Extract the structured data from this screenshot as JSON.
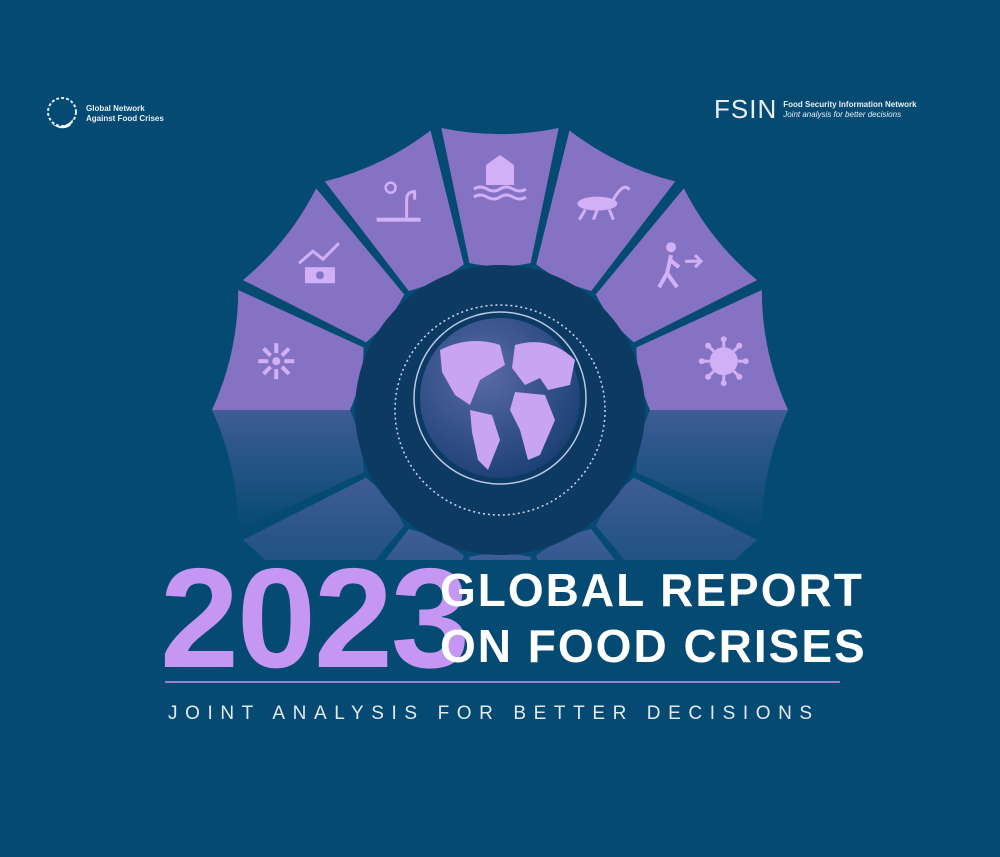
{
  "logos": {
    "left": {
      "line1": "Global Network",
      "line2": "Against Food Crises"
    },
    "right": {
      "mark": "FSIN",
      "line1": "Food Security Information Network",
      "line2": "Joint analysis for better decisions"
    }
  },
  "cover": {
    "year": "2023",
    "title_line1": "GLOBAL REPORT",
    "title_line2": "ON FOOD CRISES",
    "tagline": "JOINT ANALYSIS FOR BETTER DECISIONS"
  },
  "segment_icons": [
    "explosion-icon",
    "economic-shock-icon",
    "drought-icon",
    "flood-icon",
    "locust-icon",
    "displacement-icon",
    "virus-icon"
  ],
  "colors": {
    "background": "#054a72",
    "segment": "#8672c2",
    "icon": "#d2b0f7",
    "accent": "#c597f2"
  }
}
